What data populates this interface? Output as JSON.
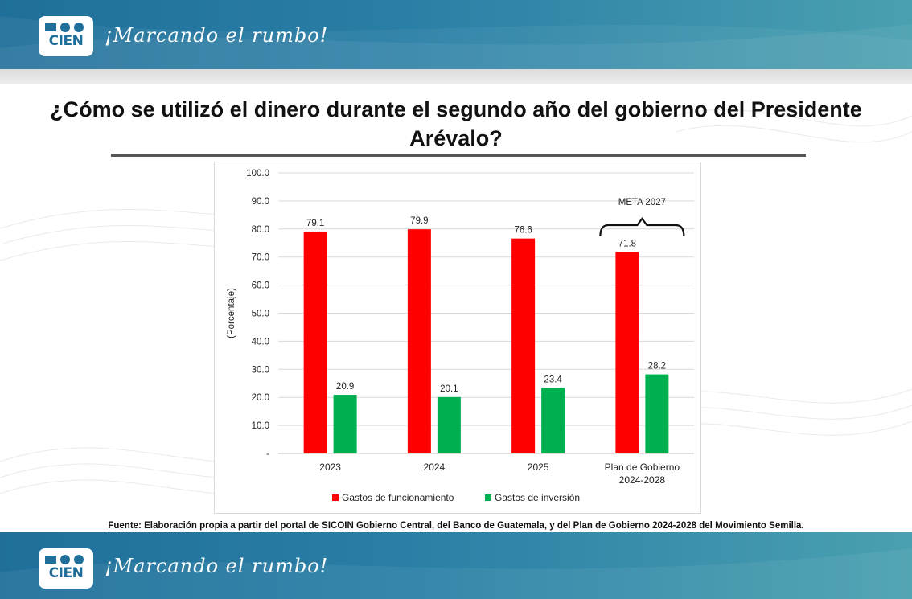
{
  "header": {
    "logo_text": "CIEN",
    "slogan": "¡Marcando el rumbo!"
  },
  "footer": {
    "logo_text": "CIEN",
    "slogan": "¡Marcando el rumbo!"
  },
  "title": "¿Cómo se utilizó el dinero durante el segundo año del gobierno del Presidente Arévalo?",
  "source": "Fuente: Elaboración propia a partir del portal de SICOIN Gobierno Central, del Banco de Guatemala, y del Plan de Gobierno 2024-2028 del Movimiento Semilla.",
  "colors": {
    "band": "#2a7fa6",
    "funcionamiento": "#ff0000",
    "inversion": "#00b050"
  },
  "chart_data": {
    "type": "bar",
    "categories": [
      "2023",
      "2024",
      "2025",
      [
        "Plan de Gobierno",
        "2024-2028"
      ]
    ],
    "series": [
      {
        "name": "Gastos de funcionamiento",
        "color": "#ff0000",
        "values": [
          79.1,
          79.9,
          76.6,
          71.8
        ]
      },
      {
        "name": "Gastos de inversión",
        "color": "#00b050",
        "values": [
          20.9,
          20.1,
          23.4,
          28.2
        ]
      }
    ],
    "ylabel": "(Porcentaje)",
    "ylim": [
      0,
      100
    ],
    "yticks": [
      "-",
      "10.0",
      "20.0",
      "30.0",
      "40.0",
      "50.0",
      "60.0",
      "70.0",
      "80.0",
      "90.0",
      "100.0"
    ],
    "grid": true,
    "legend": "bottom",
    "annotation": {
      "text": "META 2027",
      "category_index": 3
    }
  }
}
